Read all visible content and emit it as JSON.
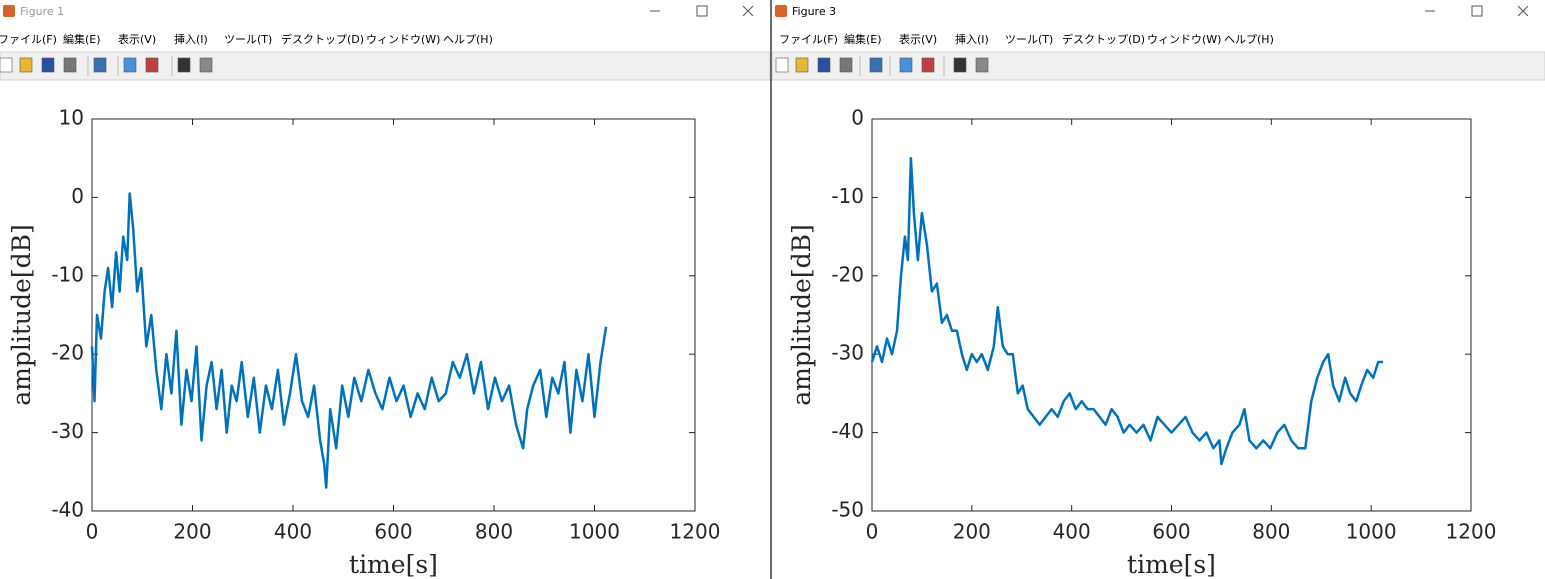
{
  "windows": [
    {
      "title": "Figure 1",
      "menu": [
        "ファイル(F)",
        "編集(E)",
        "表示(V)",
        "挿入(I)",
        "ツール(T)",
        "デスクトップ(D)",
        "ウィンドウ(W)",
        "ヘルプ(H)"
      ]
    },
    {
      "title": "Figure 3",
      "menu": [
        "ファイル(F)",
        "編集(E)",
        "表示(V)",
        "挿入(I)",
        "ツール(T)",
        "デスクトップ(D)",
        "ウィンドウ(W)",
        "ヘルプ(H)"
      ]
    }
  ],
  "chart_data": [
    {
      "type": "line",
      "xlabel": "time[s]",
      "ylabel": "amplitude[dB]",
      "color": "#0072bd",
      "xlim": [
        0,
        1200
      ],
      "xticks": [
        0,
        200,
        400,
        600,
        800,
        1000,
        1200
      ],
      "ylim": [
        -40,
        10
      ],
      "yticks": [
        -40,
        -30,
        -20,
        -10,
        0,
        10
      ],
      "x": [
        0,
        5,
        10,
        18,
        25,
        32,
        40,
        48,
        55,
        62,
        70,
        75,
        82,
        90,
        98,
        108,
        118,
        128,
        138,
        148,
        158,
        168,
        178,
        188,
        198,
        208,
        218,
        228,
        238,
        248,
        258,
        268,
        278,
        288,
        298,
        310,
        322,
        334,
        346,
        358,
        370,
        382,
        394,
        406,
        418,
        430,
        442,
        454,
        462,
        466,
        474,
        486,
        498,
        510,
        522,
        536,
        550,
        564,
        578,
        592,
        606,
        620,
        634,
        648,
        662,
        676,
        690,
        704,
        718,
        732,
        746,
        760,
        774,
        788,
        802,
        816,
        830,
        844,
        858,
        866,
        878,
        892,
        904,
        916,
        928,
        940,
        952,
        964,
        976,
        988,
        1000,
        1012,
        1023
      ],
      "values": [
        -19,
        -26,
        -15,
        -18,
        -12,
        -9,
        -14,
        -7,
        -12,
        -5,
        -8,
        0.5,
        -4,
        -12,
        -9,
        -19,
        -15,
        -22,
        -27,
        -20,
        -25,
        -17,
        -29,
        -22,
        -26,
        -19,
        -31,
        -24,
        -21,
        -27,
        -22,
        -30,
        -24,
        -26,
        -21,
        -28,
        -23,
        -30,
        -24,
        -27,
        -22,
        -29,
        -25,
        -20,
        -26,
        -28,
        -24,
        -31,
        -34,
        -37,
        -27,
        -32,
        -24,
        -28,
        -23,
        -26,
        -22,
        -25,
        -27,
        -23,
        -26,
        -24,
        -28,
        -25,
        -27,
        -23,
        -26,
        -25,
        -21,
        -23,
        -20,
        -25,
        -21,
        -27,
        -23,
        -26,
        -24,
        -29,
        -32,
        -27,
        -24,
        -22,
        -28,
        -23,
        -25,
        -21,
        -30,
        -22,
        -26,
        -20,
        -28,
        -21,
        -16.5
      ]
    },
    {
      "type": "line",
      "xlabel": "time[s]",
      "ylabel": "amplitude[dB]",
      "color": "#0072bd",
      "xlim": [
        0,
        1200
      ],
      "xticks": [
        0,
        200,
        400,
        600,
        800,
        1000,
        1200
      ],
      "ylim": [
        -50,
        0
      ],
      "yticks": [
        -50,
        -40,
        -30,
        -20,
        -10,
        0
      ],
      "x": [
        0,
        10,
        20,
        30,
        40,
        50,
        58,
        66,
        72,
        78,
        84,
        92,
        100,
        110,
        120,
        130,
        140,
        150,
        160,
        170,
        180,
        190,
        200,
        210,
        220,
        232,
        244,
        252,
        262,
        272,
        282,
        292,
        302,
        312,
        324,
        336,
        348,
        360,
        372,
        384,
        396,
        408,
        420,
        432,
        444,
        456,
        468,
        480,
        492,
        504,
        516,
        530,
        544,
        558,
        572,
        586,
        600,
        614,
        628,
        642,
        656,
        670,
        684,
        696,
        700,
        710,
        722,
        736,
        746,
        756,
        770,
        784,
        798,
        812,
        826,
        840,
        854,
        868,
        880,
        892,
        904,
        914,
        924,
        936,
        948,
        958,
        970,
        980,
        992,
        1004,
        1014,
        1024
      ],
      "values": [
        -31,
        -29,
        -31,
        -28,
        -30,
        -27,
        -20,
        -15,
        -18,
        -5,
        -12,
        -18,
        -12,
        -16,
        -22,
        -21,
        -26,
        -25,
        -27,
        -27,
        -30,
        -32,
        -30,
        -31,
        -30,
        -32,
        -29,
        -24,
        -29,
        -30,
        -30,
        -35,
        -34,
        -37,
        -38,
        -39,
        -38,
        -37,
        -38,
        -36,
        -35,
        -37,
        -36,
        -37,
        -37,
        -38,
        -39,
        -37,
        -38,
        -40,
        -39,
        -40,
        -39,
        -41,
        -38,
        -39,
        -40,
        -39,
        -38,
        -40,
        -41,
        -40,
        -42,
        -41,
        -44,
        -42,
        -40,
        -39,
        -37,
        -41,
        -42,
        -41,
        -42,
        -40,
        -39,
        -41,
        -42,
        -42,
        -36,
        -33,
        -31,
        -30,
        -34,
        -36,
        -33,
        -35,
        -36,
        -34,
        -32,
        -33,
        -31,
        -31
      ]
    }
  ]
}
